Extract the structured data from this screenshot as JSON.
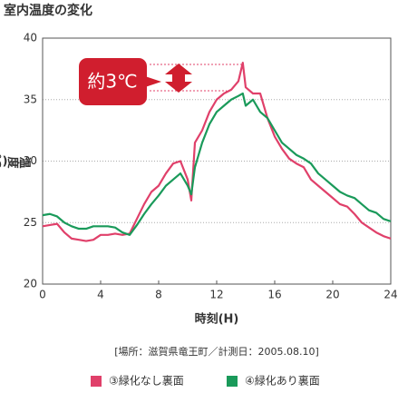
{
  "chart_data": {
    "type": "line",
    "title": "室内温度の変化",
    "y_label": "温度(℃)",
    "x_label": "時刻(H)",
    "note": "[場所：滋賀県竜王町／計測日：2005.08.10]",
    "annotation": "約3℃",
    "x": [
      0,
      0.5,
      1,
      1.5,
      2,
      2.5,
      3,
      3.5,
      4,
      4.5,
      5,
      5.5,
      6,
      6.5,
      7,
      7.5,
      8,
      8.5,
      9,
      9.5,
      10,
      10.25,
      10.5,
      11,
      11.5,
      12,
      12.5,
      13,
      13.5,
      13.8,
      14,
      14.5,
      15,
      15.5,
      16,
      16.5,
      17,
      17.5,
      18,
      18.5,
      19,
      19.5,
      20,
      20.5,
      21,
      21.5,
      22,
      22.5,
      23,
      23.5,
      24
    ],
    "series": [
      {
        "name": "③緑化なし裏面",
        "color": "#e0406a",
        "values": [
          24.7,
          24.8,
          24.9,
          24.2,
          23.7,
          23.6,
          23.5,
          23.6,
          24.0,
          24.0,
          24.1,
          24.0,
          24.1,
          25.3,
          26.5,
          27.5,
          28.0,
          29.0,
          29.8,
          30.0,
          28.5,
          26.8,
          31.5,
          32.5,
          34.0,
          35.0,
          35.5,
          35.8,
          36.5,
          38.0,
          36.0,
          35.5,
          35.5,
          33.5,
          32.0,
          31.0,
          30.2,
          29.8,
          29.5,
          28.5,
          28.0,
          27.5,
          27.0,
          26.5,
          26.3,
          25.7,
          25.0,
          24.6,
          24.2,
          23.9,
          23.7
        ]
      },
      {
        "name": "④緑化あり裏面",
        "color": "#1a9a5a",
        "values": [
          25.6,
          25.7,
          25.5,
          25.0,
          24.7,
          24.5,
          24.5,
          24.7,
          24.7,
          24.7,
          24.6,
          24.2,
          24.0,
          24.8,
          25.7,
          26.5,
          27.2,
          28.0,
          28.5,
          29.0,
          28.0,
          27.3,
          29.5,
          31.5,
          33.0,
          34.0,
          34.5,
          35.0,
          35.3,
          35.5,
          34.5,
          35.0,
          34.0,
          33.5,
          32.5,
          31.5,
          31.0,
          30.5,
          30.2,
          29.8,
          29.0,
          28.5,
          28.0,
          27.5,
          27.2,
          27.0,
          26.5,
          26.0,
          25.8,
          25.3,
          25.1
        ]
      }
    ],
    "xlim": [
      0,
      24
    ],
    "xticks": [
      0,
      4,
      8,
      12,
      16,
      20,
      24
    ],
    "ylim": [
      20,
      40
    ],
    "yticks": [
      20,
      25,
      30,
      35,
      40
    ],
    "grid": true
  }
}
